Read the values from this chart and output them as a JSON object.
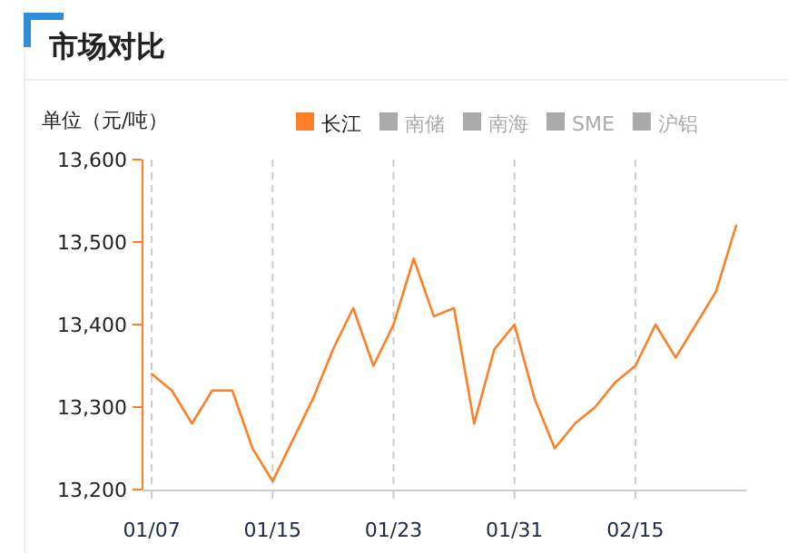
{
  "chart_data": {
    "type": "line",
    "title": "市场对比",
    "ylabel": "单位（元/吨）",
    "categories": [
      "01/07",
      null,
      null,
      null,
      null,
      null,
      "01/15",
      null,
      null,
      null,
      null,
      null,
      "01/23",
      null,
      null,
      null,
      null,
      null,
      "01/31",
      null,
      null,
      null,
      null,
      null,
      "02/15",
      null,
      null,
      null,
      null,
      null
    ],
    "series": [
      {
        "name": "长江",
        "color": "#ff7f27",
        "values": [
          13340,
          13320,
          13280,
          13320,
          13320,
          13250,
          13210,
          13260,
          13310,
          13370,
          13420,
          13350,
          13400,
          13480,
          13410,
          13420,
          13280,
          13370,
          13400,
          13310,
          13250,
          13280,
          13300,
          13330,
          13350,
          13400,
          13360,
          13400,
          13440,
          13520
        ]
      },
      {
        "name": "南储",
        "color": "#aaaaaa",
        "values": [
          null,
          null,
          null,
          null,
          null,
          null,
          null,
          null,
          null,
          null,
          null,
          null,
          null,
          null,
          null,
          null,
          null,
          null,
          null,
          null,
          null,
          null,
          null,
          null,
          null,
          null,
          null,
          null,
          null,
          null
        ]
      },
      {
        "name": "南海",
        "color": "#aaaaaa",
        "values": [
          null,
          null,
          null,
          null,
          null,
          null,
          null,
          null,
          null,
          null,
          null,
          null,
          null,
          null,
          null,
          null,
          null,
          null,
          null,
          null,
          null,
          null,
          null,
          null,
          null,
          null,
          null,
          null,
          null,
          null
        ]
      },
      {
        "name": "SME",
        "color": "#aaaaaa",
        "values": [
          null,
          null,
          null,
          null,
          null,
          null,
          null,
          null,
          null,
          null,
          null,
          null,
          null,
          null,
          null,
          null,
          null,
          null,
          null,
          null,
          null,
          null,
          null,
          null,
          null,
          null,
          null,
          null,
          null,
          null
        ]
      },
      {
        "name": "沪铝",
        "color": "#aaaaaa",
        "values": [
          null,
          null,
          null,
          null,
          null,
          null,
          null,
          null,
          null,
          null,
          null,
          null,
          null,
          null,
          null,
          null,
          null,
          null,
          null,
          null,
          null,
          null,
          null,
          null,
          null,
          null,
          null,
          null,
          null,
          null
        ]
      }
    ],
    "ylim": [
      13200,
      13600
    ],
    "yticks": [
      {
        "value": 13200,
        "label": "13,200"
      },
      {
        "value": 13300,
        "label": "13,300"
      },
      {
        "value": 13400,
        "label": "13,400"
      },
      {
        "value": 13500,
        "label": "13,500"
      },
      {
        "value": 13600,
        "label": "13,600"
      }
    ],
    "grid": "x",
    "legend": "top",
    "marker": "none",
    "line_style": "solid"
  }
}
